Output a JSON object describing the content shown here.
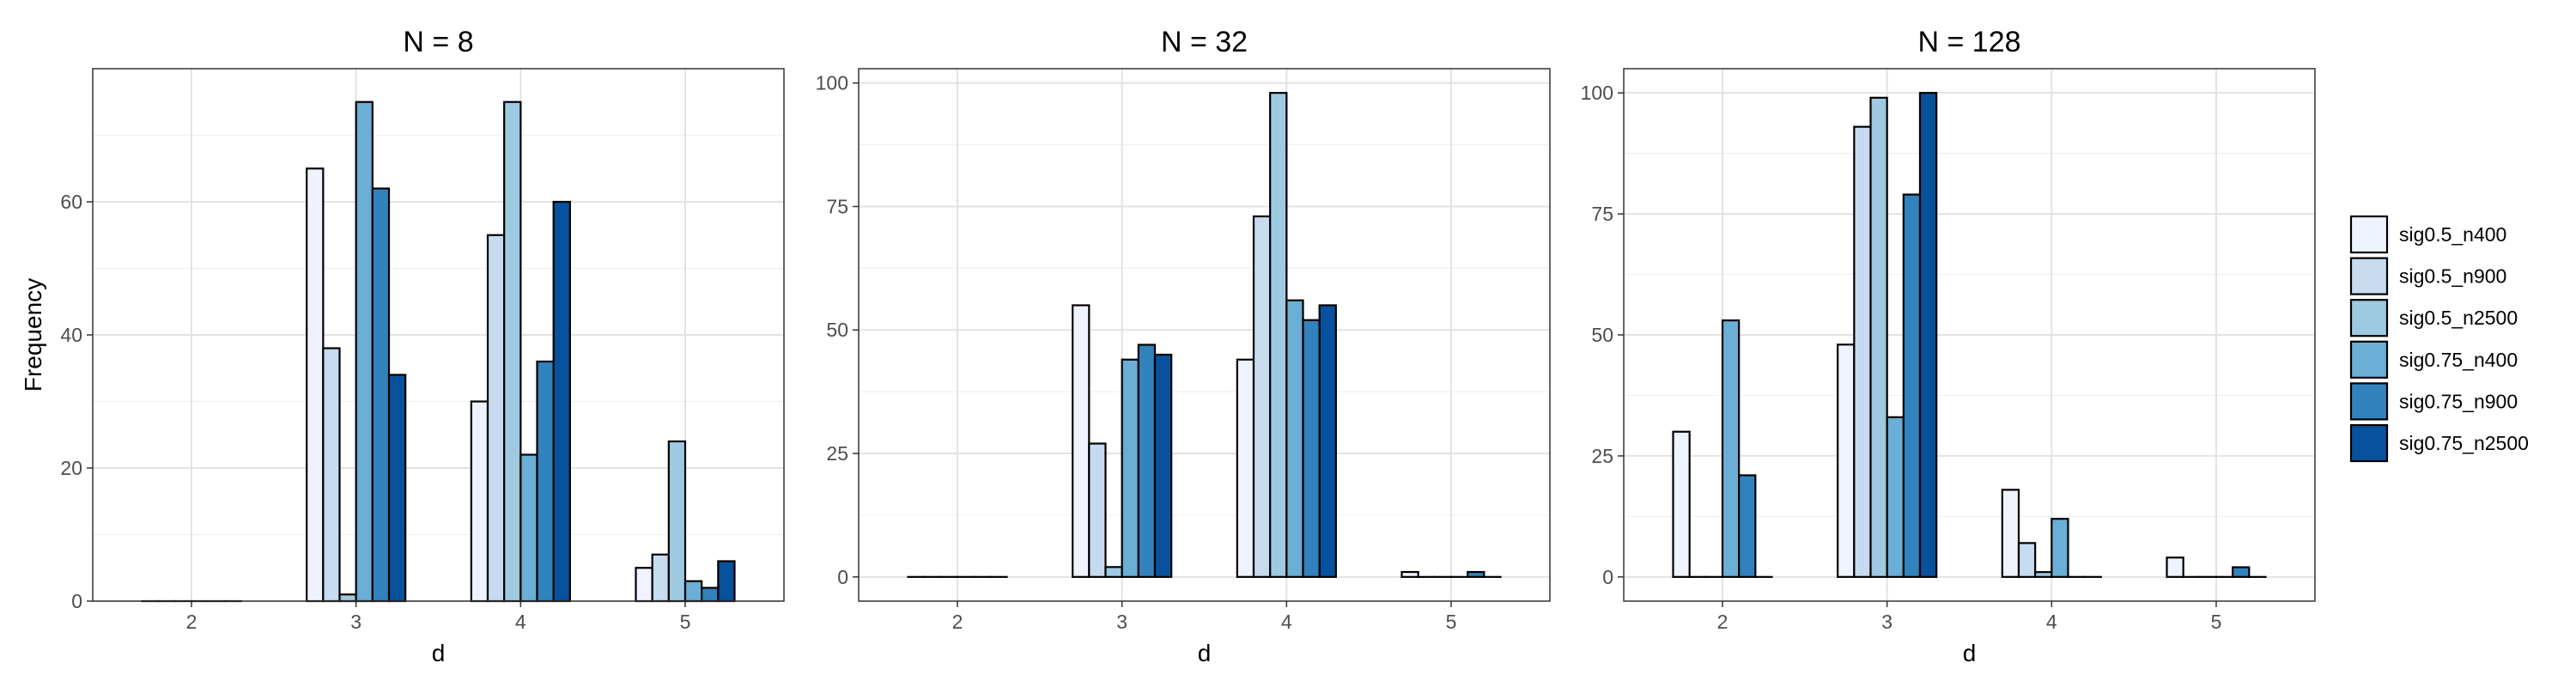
{
  "chart_data": {
    "type": "bar",
    "ylabel": "Frequency",
    "xlabel": "d",
    "categories": [
      "2",
      "3",
      "4",
      "5"
    ],
    "series_names": [
      "sig0.5_n400",
      "sig0.5_n900",
      "sig0.5_n2500",
      "sig0.75_n400",
      "sig0.75_n900",
      "sig0.75_n2500"
    ],
    "colors": [
      "#eff3ff",
      "#c6dbef",
      "#9ecae1",
      "#6baed6",
      "#3182bd",
      "#08519c"
    ],
    "grid": true,
    "legend_position": "right",
    "panels": [
      {
        "title": "N = 8",
        "ylim": [
          0,
          80
        ],
        "yticks": [
          0,
          20,
          40,
          60
        ],
        "series": [
          {
            "name": "sig0.5_n400",
            "values": [
              0,
              65,
              30,
              5
            ]
          },
          {
            "name": "sig0.5_n900",
            "values": [
              0,
              38,
              55,
              7
            ]
          },
          {
            "name": "sig0.5_n2500",
            "values": [
              0,
              1,
              75,
              24
            ]
          },
          {
            "name": "sig0.75_n400",
            "values": [
              0,
              75,
              22,
              3
            ]
          },
          {
            "name": "sig0.75_n900",
            "values": [
              0,
              62,
              36,
              2
            ]
          },
          {
            "name": "sig0.75_n2500",
            "values": [
              0,
              34,
              60,
              6
            ]
          }
        ]
      },
      {
        "title": "N = 32",
        "ylim": [
          -4.9,
          102.9
        ],
        "yticks": [
          0,
          25,
          50,
          75,
          100
        ],
        "series": [
          {
            "name": "sig0.5_n400",
            "values": [
              0,
              55,
              44,
              1
            ]
          },
          {
            "name": "sig0.5_n900",
            "values": [
              0,
              27,
              73,
              0
            ]
          },
          {
            "name": "sig0.5_n2500",
            "values": [
              0,
              2,
              98,
              0
            ]
          },
          {
            "name": "sig0.75_n400",
            "values": [
              0,
              44,
              56,
              0
            ]
          },
          {
            "name": "sig0.75_n900",
            "values": [
              0,
              47,
              52,
              1
            ]
          },
          {
            "name": "sig0.75_n2500",
            "values": [
              0,
              45,
              55,
              0
            ]
          }
        ]
      },
      {
        "title": "N = 128",
        "ylim": [
          -5.0,
          105.0
        ],
        "yticks": [
          0,
          25,
          50,
          75,
          100
        ],
        "series": [
          {
            "name": "sig0.5_n400",
            "values": [
              30,
              48,
              18,
              4
            ]
          },
          {
            "name": "sig0.5_n900",
            "values": [
              0,
              93,
              7,
              0
            ]
          },
          {
            "name": "sig0.5_n2500",
            "values": [
              0,
              99,
              1,
              0
            ]
          },
          {
            "name": "sig0.75_n400",
            "values": [
              53,
              33,
              12,
              0
            ]
          },
          {
            "name": "sig0.75_n900",
            "values": [
              21,
              79,
              0,
              2
            ]
          },
          {
            "name": "sig0.75_n2500",
            "values": [
              0,
              100,
              0,
              0
            ]
          }
        ]
      }
    ]
  }
}
